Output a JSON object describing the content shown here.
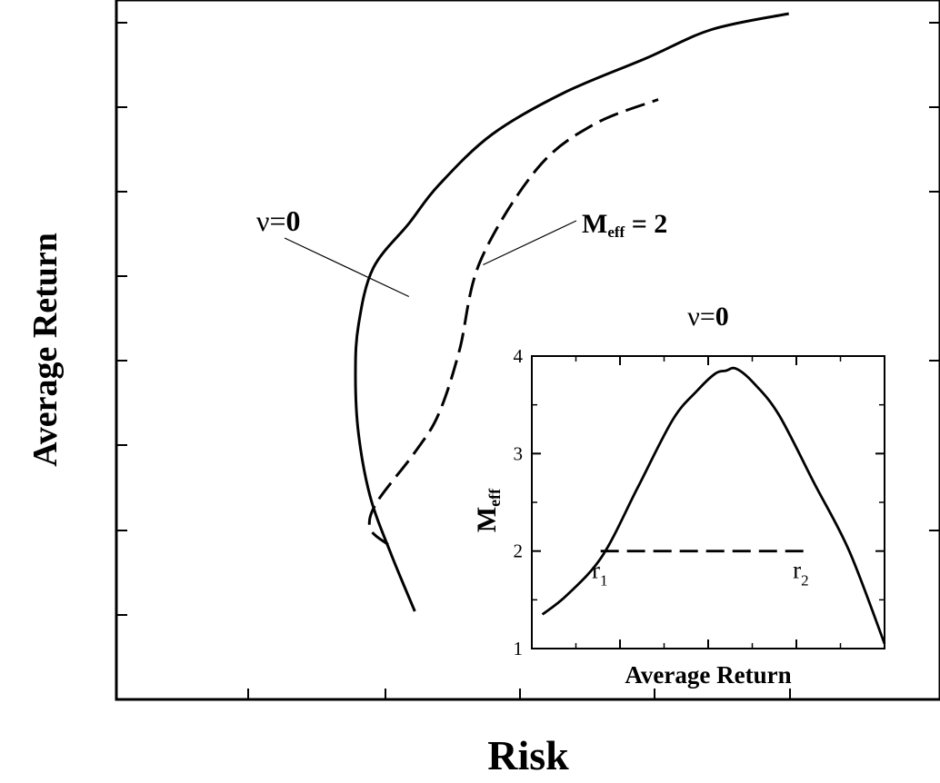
{
  "chart_data": [
    {
      "type": "line",
      "xlabel": "Risk",
      "ylabel": "Average Return",
      "xlim": [
        0,
        10
      ],
      "ylim": [
        0,
        10
      ],
      "x_tick_labels": [],
      "y_tick_labels": [],
      "grid": false,
      "series": [
        {
          "name": "ν=0",
          "style": "solid",
          "x": [
            2.7,
            2.3,
            1.95,
            1.75,
            1.7,
            1.75,
            2.0,
            2.6,
            3.1,
            4.0,
            5.2,
            6.6,
            7.7,
            9.0
          ],
          "y": [
            0.6,
            1.5,
            2.4,
            3.4,
            4.3,
            5.1,
            6.0,
            6.7,
            7.3,
            8.1,
            8.75,
            9.3,
            9.75,
            10.0
          ]
        },
        {
          "name": "M_eff = 2",
          "style": "dashed",
          "x": [
            2.25,
            1.95,
            2.05,
            2.7,
            3.1,
            3.45,
            3.8,
            4.75,
            5.7,
            6.8
          ],
          "y": [
            1.65,
            1.9,
            2.3,
            3.1,
            3.7,
            4.7,
            6.1,
            7.55,
            8.25,
            8.65
          ]
        }
      ],
      "annotations": [
        {
          "label": "ν=",
          "label_bold": "0",
          "points_to": [
            2.6,
            5.55
          ]
        },
        {
          "label": "M",
          "label_sub": "eff",
          "label_suffix": " = 2",
          "points_to": [
            3.85,
            6.05
          ]
        }
      ]
    },
    {
      "type": "line",
      "title": "ν=",
      "title_bold": "0",
      "xlabel": "Average Return",
      "ylabel": "M",
      "ylabel_sub": "eff",
      "xlim": [
        0,
        10
      ],
      "ylim": [
        1,
        4
      ],
      "y_tick_labels": [
        "1",
        "2",
        "3",
        "4"
      ],
      "y_ticks": [
        1,
        2,
        3,
        4
      ],
      "series": [
        {
          "style": "solid",
          "x": [
            0.3,
            1.0,
            2.0,
            3.0,
            4.0,
            4.7,
            5.2,
            5.5,
            5.8,
            6.3,
            7.0,
            8.0,
            9.0,
            10.0
          ],
          "y": [
            1.35,
            1.55,
            1.95,
            2.65,
            3.35,
            3.65,
            3.82,
            3.85,
            3.87,
            3.72,
            3.4,
            2.7,
            2.0,
            1.05
          ]
        },
        {
          "style": "dashed",
          "x": [
            1.95,
            7.7
          ],
          "y": [
            2.0,
            2.0
          ]
        }
      ],
      "point_labels": [
        {
          "text": "r",
          "sub": "1",
          "x": 1.7,
          "y": 1.72
        },
        {
          "text": "r",
          "sub": "2",
          "x": 7.4,
          "y": 1.72
        }
      ]
    }
  ]
}
